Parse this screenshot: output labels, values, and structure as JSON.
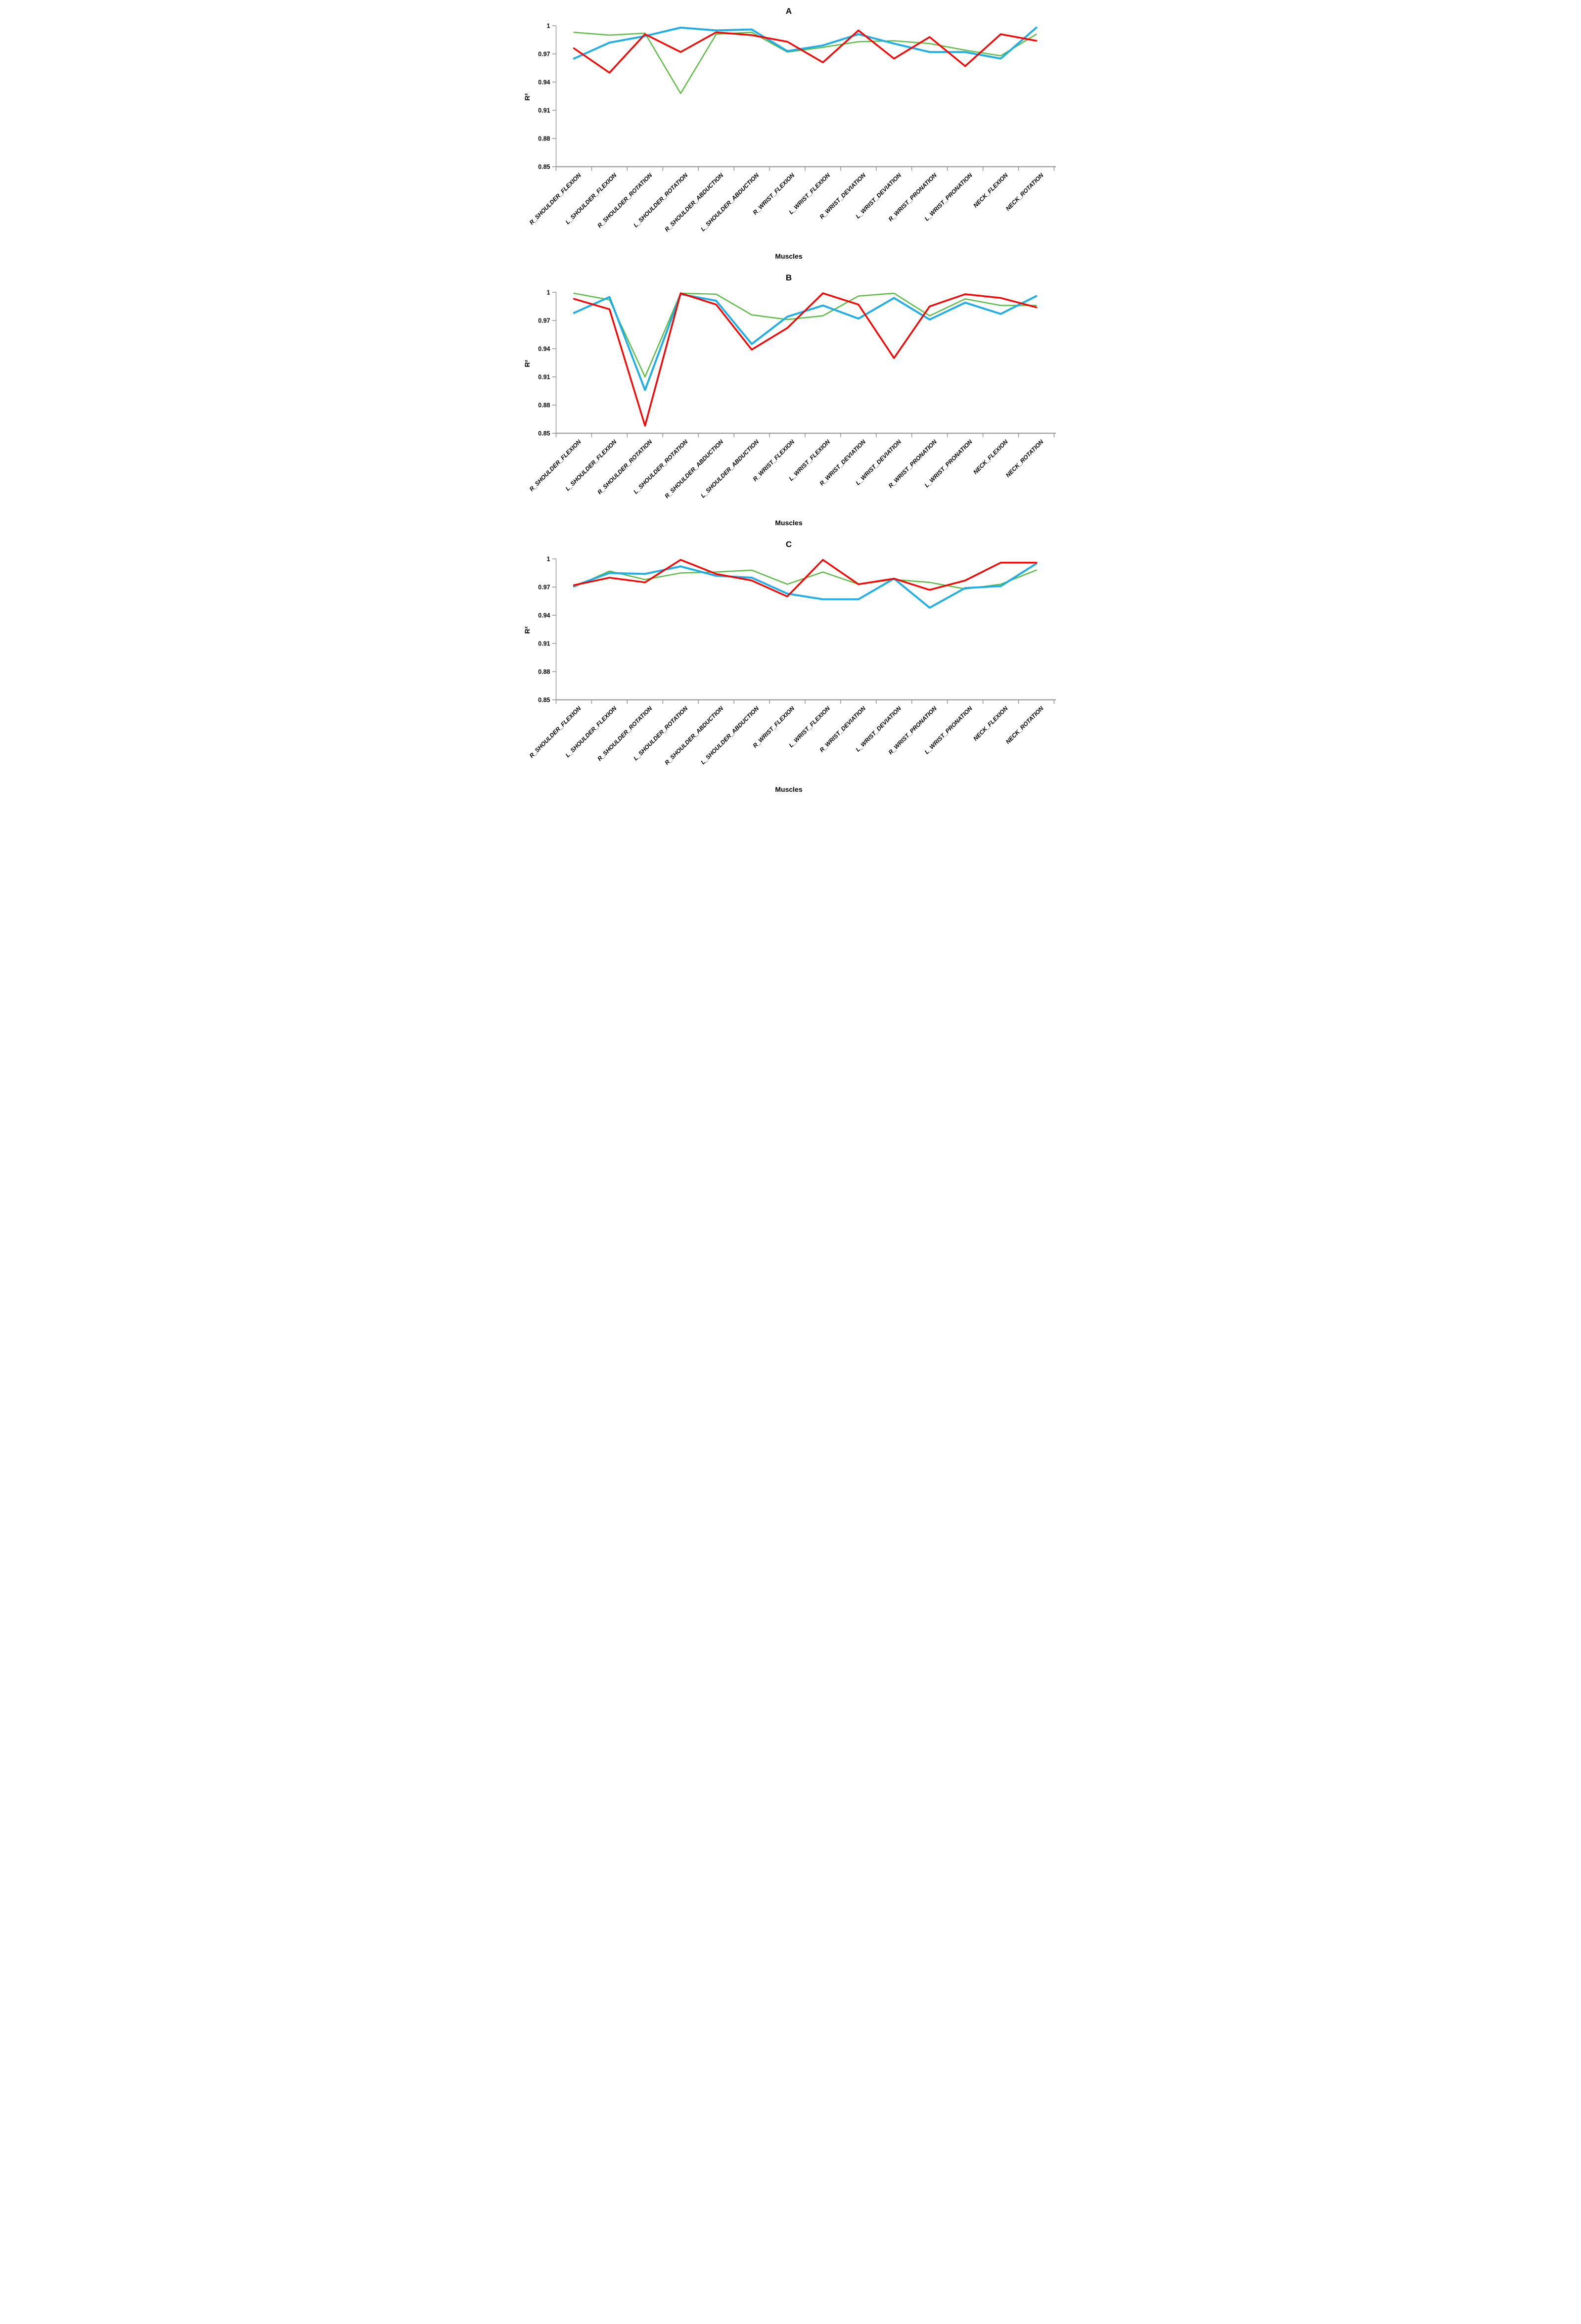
{
  "figure": {
    "background": "#ffffff",
    "panel_letters": [
      "A",
      "B",
      "C"
    ],
    "legend": "none",
    "grid": false
  },
  "axis_style": {
    "line_color": "#a6a6a6",
    "tick_color": "#8c8c8c",
    "text_color": "#000000"
  },
  "series_colors": {
    "red": "#fe0000",
    "green": "#54bc3b",
    "blue": "#1daee9"
  },
  "y_ticks": [
    "1",
    "0.97",
    "0.94",
    "0.91",
    "0.88",
    "0.85"
  ],
  "chart_data": [
    {
      "type": "line",
      "title": "A",
      "xlabel": "Muscles",
      "ylabel": "R²",
      "ylim": [
        0.85,
        1.0
      ],
      "legend_position": "none",
      "grid": false,
      "categories": [
        "R_SHOULDER_FLEXION",
        "L_SHOULDER_FLEXION",
        "R_SHOULDER_ROTATION",
        "L_SHOULDER_ROTATION",
        "R_SHOULDER_ABDUCTION",
        "L_SHOULDER_ABDUCTION",
        "R_WRIST_FLEXION",
        "L_WRIST_FLEXION",
        "R_WRIST_DEVIATION",
        "L_WRIST_DEVIATION",
        "R_WRIST_PRONATION",
        "L_WRIST_PRONATION",
        "NECK_FLEXION",
        "NECK_ROTATION"
      ],
      "series": [
        {
          "name": "green",
          "color": "green",
          "values": [
            0.993,
            0.99,
            0.992,
            0.928,
            0.991,
            0.993,
            0.972,
            0.977,
            0.983,
            0.984,
            0.981,
            0.974,
            0.968,
            0.991
          ]
        },
        {
          "name": "blue",
          "color": "blue",
          "values": [
            0.965,
            0.982,
            0.989,
            0.998,
            0.995,
            0.996,
            0.973,
            0.979,
            0.991,
            0.981,
            0.972,
            0.972,
            0.965,
            0.998
          ]
        },
        {
          "name": "red",
          "color": "red",
          "values": [
            0.976,
            0.95,
            0.991,
            0.972,
            0.993,
            0.99,
            0.983,
            0.961,
            0.995,
            0.965,
            0.988,
            0.957,
            0.991,
            0.984
          ]
        }
      ]
    },
    {
      "type": "line",
      "title": "B",
      "xlabel": "Muscles",
      "ylabel": "R²",
      "ylim": [
        0.85,
        1.0
      ],
      "legend_position": "none",
      "grid": false,
      "categories": [
        "R_SHOULDER_FLEXION",
        "L_SHOULDER_FLEXION",
        "R_SHOULDER_ROTATION",
        "L_SHOULDER_ROTATION",
        "R_SHOULDER_ABDUCTION",
        "L_SHOULDER_ABDUCTION",
        "R_WRIST_FLEXION",
        "L_WRIST_FLEXION",
        "R_WRIST_DEVIATION",
        "L_WRIST_DEVIATION",
        "R_WRIST_PRONATION",
        "L_WRIST_PRONATION",
        "NECK_FLEXION",
        "NECK_ROTATION"
      ],
      "series": [
        {
          "name": "green",
          "color": "green",
          "values": [
            0.999,
            0.992,
            0.91,
            0.999,
            0.998,
            0.976,
            0.971,
            0.975,
            0.996,
            0.999,
            0.975,
            0.993,
            0.986,
            0.986
          ]
        },
        {
          "name": "blue",
          "color": "blue",
          "values": [
            0.978,
            0.995,
            0.896,
            0.998,
            0.991,
            0.945,
            0.974,
            0.986,
            0.972,
            0.994,
            0.971,
            0.989,
            0.977,
            0.996
          ]
        },
        {
          "name": "red",
          "color": "red",
          "values": [
            0.993,
            0.982,
            0.858,
            0.999,
            0.987,
            0.939,
            0.962,
            0.999,
            0.987,
            0.93,
            0.985,
            0.998,
            0.994,
            0.984
          ]
        }
      ]
    },
    {
      "type": "line",
      "title": "C",
      "xlabel": "Muscles",
      "ylabel": "R²",
      "ylim": [
        0.85,
        1.0
      ],
      "legend_position": "none",
      "grid": false,
      "categories": [
        "R_SHOULDER_FLEXION",
        "L_SHOULDER_FLEXION",
        "R_SHOULDER_ROTATION",
        "L_SHOULDER_ROTATION",
        "R_SHOULDER_ABDUCTION",
        "L_SHOULDER_ABDUCTION",
        "R_WRIST_FLEXION",
        "L_WRIST_FLEXION",
        "R_WRIST_DEVIATION",
        "L_WRIST_DEVIATION",
        "R_WRIST_PRONATION",
        "L_WRIST_PRONATION",
        "NECK_FLEXION",
        "NECK_ROTATION"
      ],
      "series": [
        {
          "name": "green",
          "color": "green",
          "values": [
            0.97,
            0.987,
            0.978,
            0.985,
            0.986,
            0.988,
            0.973,
            0.986,
            0.973,
            0.978,
            0.975,
            0.968,
            0.973,
            0.988
          ]
        },
        {
          "name": "blue",
          "color": "blue",
          "values": [
            0.971,
            0.985,
            0.984,
            0.992,
            0.982,
            0.98,
            0.963,
            0.957,
            0.957,
            0.979,
            0.948,
            0.969,
            0.971,
            0.995
          ]
        },
        {
          "name": "red",
          "color": "red",
          "values": [
            0.972,
            0.98,
            0.975,
            0.999,
            0.984,
            0.977,
            0.96,
            0.999,
            0.973,
            0.979,
            0.967,
            0.977,
            0.996,
            0.996
          ]
        }
      ]
    }
  ]
}
